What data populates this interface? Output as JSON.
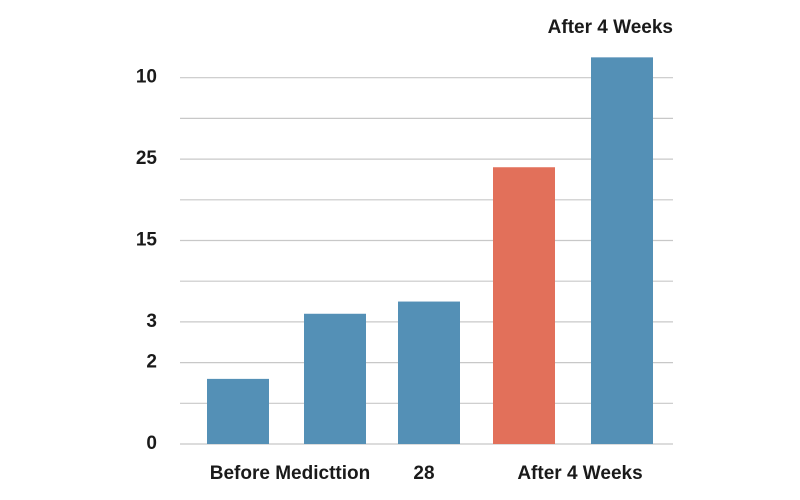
{
  "chart_data": {
    "type": "bar",
    "title": "After 4 Weeks",
    "categories": [
      "Before Medicttion",
      null,
      "28",
      null,
      "After 4 Weeks"
    ],
    "values": [
      1.6,
      3.2,
      3.5,
      6.8,
      9.5
    ],
    "colors": [
      "#5490b6",
      "#5490b6",
      "#5490b6",
      "#e2705a",
      "#5490b6"
    ],
    "ylim": [
      0,
      10
    ],
    "yticks": [
      0,
      2,
      3,
      {
        "value": 5,
        "label": "15"
      },
      {
        "value": 7,
        "label": "25"
      },
      {
        "value": 9,
        "label": "10"
      }
    ],
    "minor_yticks": [
      1,
      4,
      6,
      8
    ],
    "grid": true
  }
}
